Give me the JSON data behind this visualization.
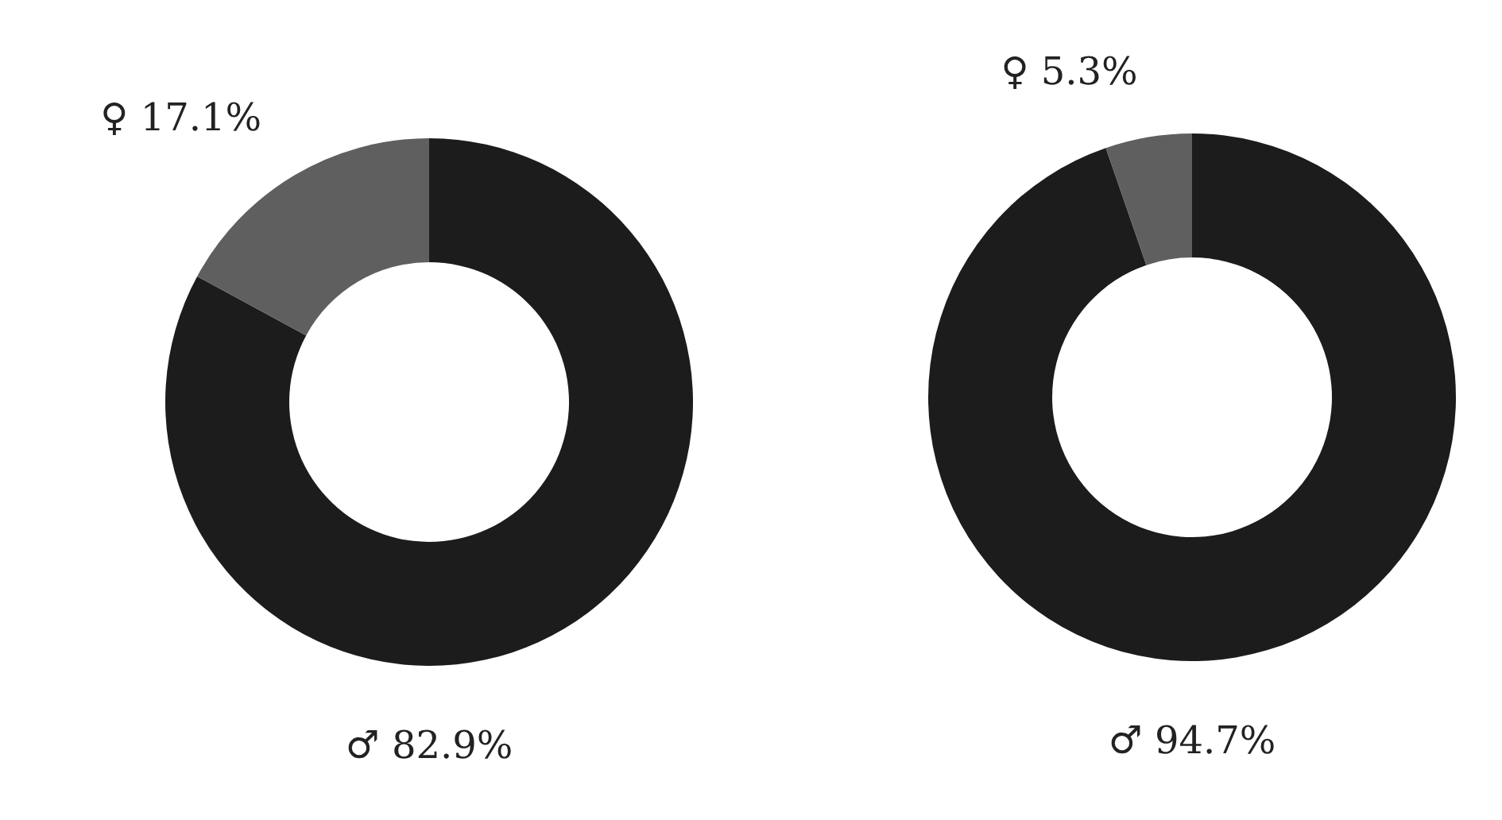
{
  "chart_data": [
    {
      "type": "donut",
      "categories": [
        "♂",
        "♀"
      ],
      "values": [
        82.9,
        17.1
      ],
      "colors": [
        "#1c1c1c",
        "#5f5f5f"
      ],
      "value_labels": [
        "82.9%",
        "17.1%"
      ]
    },
    {
      "type": "donut",
      "categories": [
        "♂",
        "♀"
      ],
      "values": [
        94.7,
        5.3
      ],
      "colors": [
        "#1c1c1c",
        "#5f5f5f"
      ],
      "value_labels": [
        "94.7%",
        "5.3%"
      ]
    }
  ]
}
